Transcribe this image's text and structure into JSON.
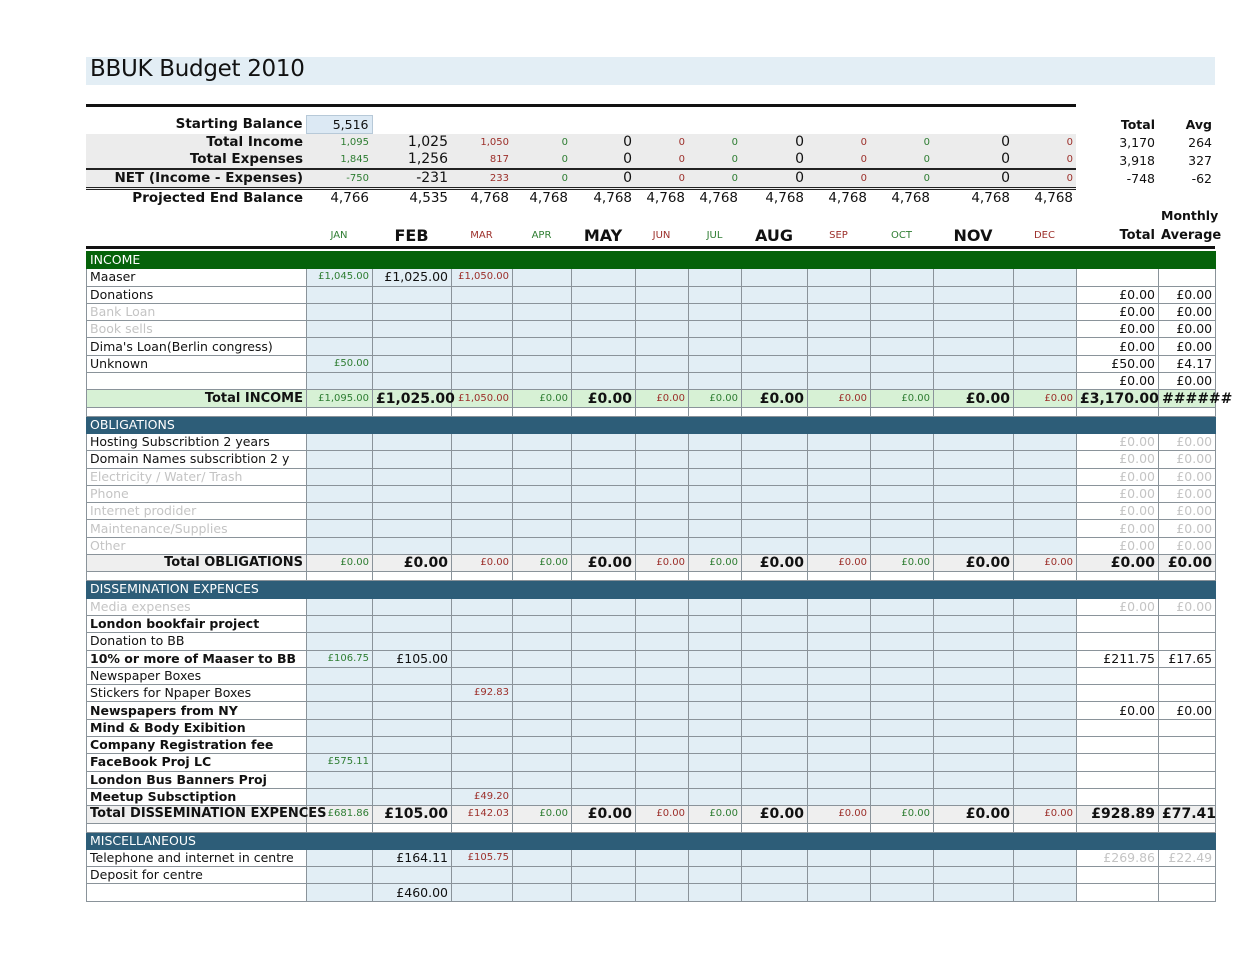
{
  "title": "BBUK Budget 2010",
  "colors": {
    "section_income": "#05620a",
    "section_other": "#2d5d78",
    "month_green": "#2e7d32",
    "month_red": "#9c2f2a",
    "cell_blue": "#e2eef5"
  },
  "summary": {
    "total_header": "Total",
    "avg_header": "Avg",
    "starting_balance": {
      "label": "Starting Balance",
      "value": "5,516"
    },
    "rows": [
      {
        "label": "Total Income",
        "values": [
          "1,095",
          "1,025",
          "1,050",
          "0",
          "0",
          "0",
          "0",
          "0",
          "0",
          "0",
          "0",
          "0"
        ],
        "total": "3,170",
        "avg": "264"
      },
      {
        "label": "Total Expenses",
        "values": [
          "1,845",
          "1,256",
          "817",
          "0",
          "0",
          "0",
          "0",
          "0",
          "0",
          "0",
          "0",
          "0"
        ],
        "total": "3,918",
        "avg": "327"
      },
      {
        "label": "NET (Income - Expenses)",
        "values": [
          "-750",
          "-231",
          "233",
          "0",
          "0",
          "0",
          "0",
          "0",
          "0",
          "0",
          "0",
          "0"
        ],
        "total": "-748",
        "avg": "-62"
      },
      {
        "label": "Projected End Balance",
        "values": [
          "4,766",
          "4,535",
          "4,768",
          "4,768",
          "4,768",
          "4,768",
          "4,768",
          "4,768",
          "4,768",
          "4,768",
          "4,768",
          "4,768"
        ],
        "total": "",
        "avg": ""
      }
    ],
    "monthly_label": "Monthly",
    "total_col_label": "Total",
    "average_col_label": "Average"
  },
  "months": [
    "JAN",
    "FEB",
    "MAR",
    "APR",
    "MAY",
    "JUN",
    "JUL",
    "AUG",
    "SEP",
    "OCT",
    "NOV",
    "DEC"
  ],
  "sections": [
    {
      "name": "INCOME",
      "kind": "income",
      "rows": [
        {
          "label": "Maaser",
          "style": "normal",
          "values": [
            "£1,045.00",
            "£1,025.00",
            "£1,050.00",
            "",
            "",
            "",
            "",
            "",
            "",
            "",
            "",
            ""
          ],
          "total": "",
          "avg": ""
        },
        {
          "label": "Donations",
          "style": "normal",
          "values": [
            "",
            "",
            "",
            "",
            "",
            "",
            "",
            "",
            "",
            "",
            "",
            ""
          ],
          "total": "£0.00",
          "avg": "£0.00"
        },
        {
          "label": "Bank Loan",
          "style": "muted",
          "values": [
            "",
            "",
            "",
            "",
            "",
            "",
            "",
            "",
            "",
            "",
            "",
            ""
          ],
          "total": "£0.00",
          "avg": "£0.00"
        },
        {
          "label": "Book sells",
          "style": "muted",
          "values": [
            "",
            "",
            "",
            "",
            "",
            "",
            "",
            "",
            "",
            "",
            "",
            ""
          ],
          "total": "£0.00",
          "avg": "£0.00"
        },
        {
          "label": "Dima's Loan(Berlin congress)",
          "style": "normal",
          "values": [
            "",
            "",
            "",
            "",
            "",
            "",
            "",
            "",
            "",
            "",
            "",
            ""
          ],
          "total": "£0.00",
          "avg": "£0.00"
        },
        {
          "label": "Unknown",
          "style": "normal",
          "values": [
            "£50.00",
            "",
            "",
            "",
            "",
            "",
            "",
            "",
            "",
            "",
            "",
            ""
          ],
          "total": "£50.00",
          "avg": "£4.17"
        },
        {
          "label": "",
          "style": "normal",
          "values": [
            "",
            "",
            "",
            "",
            "",
            "",
            "",
            "",
            "",
            "",
            "",
            ""
          ],
          "total": "£0.00",
          "avg": "£0.00"
        }
      ],
      "total": {
        "label": "Total INCOME",
        "values": [
          "£1,095.00",
          "£1,025.00",
          "£1,050.00",
          "£0.00",
          "£0.00",
          "£0.00",
          "£0.00",
          "£0.00",
          "£0.00",
          "£0.00",
          "£0.00",
          "£0.00"
        ],
        "total": "£3,170.00",
        "avg": "######"
      }
    },
    {
      "name": "OBLIGATIONS",
      "kind": "other",
      "rows": [
        {
          "label": "Hosting Subscribtion 2 years",
          "style": "normal",
          "values": [
            "",
            "",
            "",
            "",
            "",
            "",
            "",
            "",
            "",
            "",
            "",
            ""
          ],
          "total": "£0.00",
          "avg": "£0.00",
          "totals_muted": true
        },
        {
          "label": "Domain Names subscribtion 2 y",
          "style": "normal",
          "values": [
            "",
            "",
            "",
            "",
            "",
            "",
            "",
            "",
            "",
            "",
            "",
            ""
          ],
          "total": "£0.00",
          "avg": "£0.00",
          "totals_muted": true
        },
        {
          "label": "Electricity / Water/ Trash",
          "style": "muted",
          "values": [
            "",
            "",
            "",
            "",
            "",
            "",
            "",
            "",
            "",
            "",
            "",
            ""
          ],
          "total": "£0.00",
          "avg": "£0.00",
          "totals_muted": true
        },
        {
          "label": "Phone",
          "style": "muted",
          "values": [
            "",
            "",
            "",
            "",
            "",
            "",
            "",
            "",
            "",
            "",
            "",
            ""
          ],
          "total": "£0.00",
          "avg": "£0.00",
          "totals_muted": true
        },
        {
          "label": "Internet prodider",
          "style": "muted",
          "values": [
            "",
            "",
            "",
            "",
            "",
            "",
            "",
            "",
            "",
            "",
            "",
            ""
          ],
          "total": "£0.00",
          "avg": "£0.00",
          "totals_muted": true
        },
        {
          "label": "Maintenance/Supplies",
          "style": "muted",
          "values": [
            "",
            "",
            "",
            "",
            "",
            "",
            "",
            "",
            "",
            "",
            "",
            ""
          ],
          "total": "£0.00",
          "avg": "£0.00",
          "totals_muted": true
        },
        {
          "label": "Other",
          "style": "muted",
          "values": [
            "",
            "",
            "",
            "",
            "",
            "",
            "",
            "",
            "",
            "",
            "",
            ""
          ],
          "total": "£0.00",
          "avg": "£0.00",
          "totals_muted": true
        }
      ],
      "total": {
        "label": "Total OBLIGATIONS",
        "values": [
          "£0.00",
          "£0.00",
          "£0.00",
          "£0.00",
          "£0.00",
          "£0.00",
          "£0.00",
          "£0.00",
          "£0.00",
          "£0.00",
          "£0.00",
          "£0.00"
        ],
        "total": "£0.00",
        "avg": "£0.00"
      }
    },
    {
      "name": "DISSEMINATION EXPENCES",
      "kind": "other",
      "rows": [
        {
          "label": "Media expenses",
          "style": "muted",
          "values": [
            "",
            "",
            "",
            "",
            "",
            "",
            "",
            "",
            "",
            "",
            "",
            ""
          ],
          "total": "£0.00",
          "avg": "£0.00",
          "totals_muted": true
        },
        {
          "label": "London bookfair project",
          "style": "bold",
          "values": [
            "",
            "",
            "",
            "",
            "",
            "",
            "",
            "",
            "",
            "",
            "",
            ""
          ],
          "total": "",
          "avg": ""
        },
        {
          "label": "Donation to BB",
          "style": "normal",
          "values": [
            "",
            "",
            "",
            "",
            "",
            "",
            "",
            "",
            "",
            "",
            "",
            ""
          ],
          "total": "",
          "avg": ""
        },
        {
          "label": "10% or more of Maaser to BB",
          "style": "bold",
          "values": [
            "£106.75",
            "£105.00",
            "",
            "",
            "",
            "",
            "",
            "",
            "",
            "",
            "",
            ""
          ],
          "total": "£211.75",
          "avg": "£17.65"
        },
        {
          "label": "Newspaper Boxes",
          "style": "normal",
          "values": [
            "",
            "",
            "",
            "",
            "",
            "",
            "",
            "",
            "",
            "",
            "",
            ""
          ],
          "total": "",
          "avg": ""
        },
        {
          "label": "Stickers for Npaper Boxes",
          "style": "normal",
          "values": [
            "",
            "",
            "£92.83",
            "",
            "",
            "",
            "",
            "",
            "",
            "",
            "",
            ""
          ],
          "total": "",
          "avg": ""
        },
        {
          "label": "Newspapers from NY",
          "style": "bold",
          "values": [
            "",
            "",
            "",
            "",
            "",
            "",
            "",
            "",
            "",
            "",
            "",
            ""
          ],
          "total": "£0.00",
          "avg": "£0.00"
        },
        {
          "label": "Mind & Body Exibition",
          "style": "bold",
          "values": [
            "",
            "",
            "",
            "",
            "",
            "",
            "",
            "",
            "",
            "",
            "",
            ""
          ],
          "total": "",
          "avg": ""
        },
        {
          "label": "Company Registration fee",
          "style": "bold",
          "values": [
            "",
            "",
            "",
            "",
            "",
            "",
            "",
            "",
            "",
            "",
            "",
            ""
          ],
          "total": "",
          "avg": ""
        },
        {
          "label": "FaceBook Proj LC",
          "style": "bold",
          "values": [
            "£575.11",
            "",
            "",
            "",
            "",
            "",
            "",
            "",
            "",
            "",
            "",
            ""
          ],
          "total": "",
          "avg": ""
        },
        {
          "label": "London Bus Banners Proj",
          "style": "bold",
          "values": [
            "",
            "",
            "",
            "",
            "",
            "",
            "",
            "",
            "",
            "",
            "",
            ""
          ],
          "total": "",
          "avg": ""
        },
        {
          "label": "Meetup Subsctiption",
          "style": "bold",
          "values": [
            "",
            "",
            "£49.20",
            "",
            "",
            "",
            "",
            "",
            "",
            "",
            "",
            ""
          ],
          "total": "",
          "avg": ""
        }
      ],
      "total": {
        "label": "Total DISSEMINATION EXPENCES",
        "values": [
          "£681.86",
          "£105.00",
          "£142.03",
          "£0.00",
          "£0.00",
          "£0.00",
          "£0.00",
          "£0.00",
          "£0.00",
          "£0.00",
          "£0.00",
          "£0.00"
        ],
        "total": "£928.89",
        "avg": "£77.41"
      }
    },
    {
      "name": "MISCELLANEOUS",
      "kind": "other",
      "rows": [
        {
          "label": "Telephone and internet in centre",
          "style": "normal",
          "values": [
            "",
            "£164.11",
            "£105.75",
            "",
            "",
            "",
            "",
            "",
            "",
            "",
            "",
            ""
          ],
          "total": "£269.86",
          "avg": "£22.49",
          "totals_muted": true
        },
        {
          "label": "Deposit for centre",
          "style": "normal",
          "values": [
            "",
            "",
            "",
            "",
            "",
            "",
            "",
            "",
            "",
            "",
            "",
            ""
          ],
          "total": "",
          "avg": ""
        },
        {
          "label": "",
          "style": "normal",
          "values": [
            "",
            "£460.00",
            "",
            "",
            "",
            "",
            "",
            "",
            "",
            "",
            "",
            ""
          ],
          "total": "",
          "avg": ""
        }
      ]
    }
  ]
}
